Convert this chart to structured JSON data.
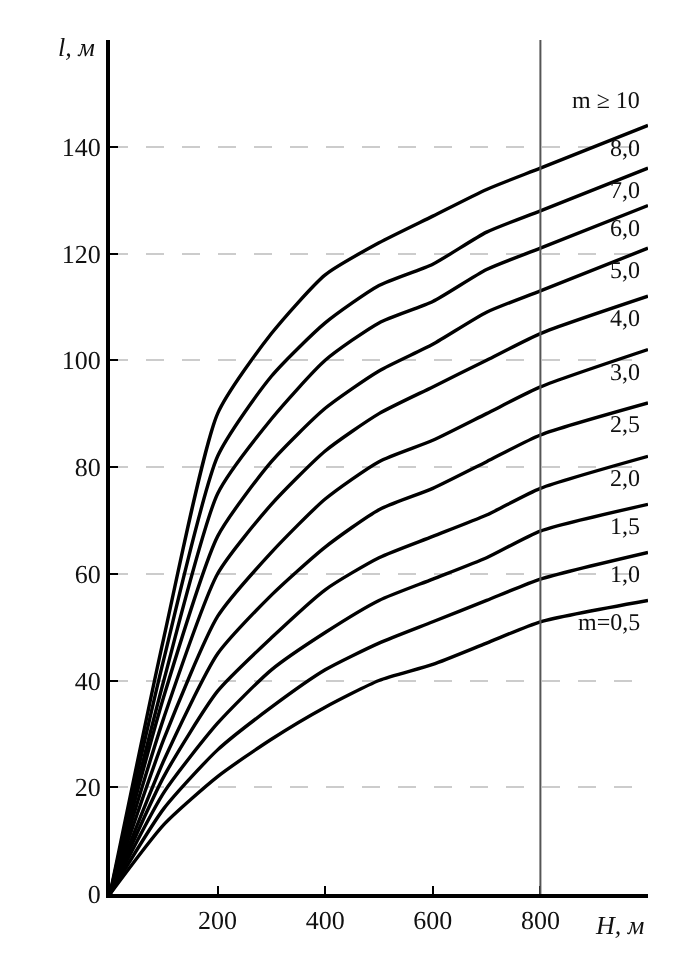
{
  "chart_data": {
    "type": "line",
    "xlabel": "H, м",
    "ylabel": "l, м",
    "x": [
      0,
      100,
      200,
      300,
      400,
      500,
      600,
      700,
      800,
      1000
    ],
    "series": [
      {
        "name": "m=0,5",
        "color": "#000000",
        "values": [
          0,
          13,
          22,
          29,
          35,
          40,
          43,
          47,
          51,
          55
        ]
      },
      {
        "name": "1,0",
        "color": "#000000",
        "values": [
          0,
          16,
          27,
          35,
          42,
          47,
          51,
          55,
          59,
          64
        ]
      },
      {
        "name": "1,5",
        "color": "#000000",
        "values": [
          0,
          19,
          32,
          42,
          49,
          55,
          59,
          63,
          68,
          73
        ]
      },
      {
        "name": "2,0",
        "color": "#000000",
        "values": [
          0,
          22,
          38,
          48,
          57,
          63,
          67,
          71,
          76,
          82
        ]
      },
      {
        "name": "2,5",
        "color": "#000000",
        "values": [
          0,
          25,
          45,
          56,
          65,
          72,
          76,
          81,
          86,
          92
        ]
      },
      {
        "name": "3,0",
        "color": "#000000",
        "values": [
          0,
          29,
          52,
          64,
          74,
          81,
          85,
          90,
          95,
          102
        ]
      },
      {
        "name": "4,0",
        "color": "#000000",
        "values": [
          0,
          33,
          60,
          73,
          83,
          90,
          95,
          100,
          105,
          112
        ]
      },
      {
        "name": "5,0",
        "color": "#000000",
        "values": [
          0,
          37,
          67,
          81,
          91,
          98,
          103,
          109,
          113,
          121
        ]
      },
      {
        "name": "6,0",
        "color": "#000000",
        "values": [
          0,
          40,
          75,
          89,
          100,
          107,
          111,
          117,
          121,
          129
        ]
      },
      {
        "name": "7,0",
        "color": "#000000",
        "values": [
          0,
          44,
          82,
          97,
          107,
          114,
          118,
          124,
          128,
          136
        ]
      },
      {
        "name": "8,0",
        "color": "#000000",
        "values": [
          0,
          48,
          90,
          105,
          116,
          122,
          127,
          132,
          136,
          144
        ]
      }
    ],
    "annotations": [
      "m ≥ 10"
    ],
    "xlim": [
      0,
      1000
    ],
    "xticks": [
      {
        "value": 200,
        "label": "200"
      },
      {
        "value": 400,
        "label": "400"
      },
      {
        "value": 600,
        "label": "600"
      },
      {
        "value": 800,
        "label": "800"
      }
    ],
    "ylim": [
      0,
      160
    ],
    "yticks": [
      0,
      20,
      40,
      60,
      80,
      100,
      120,
      140
    ],
    "ref_lines": [
      {
        "axis": "x",
        "value": 800,
        "color": "#555555"
      }
    ],
    "grid": "y",
    "legend": false,
    "marker": "none",
    "line_style": "solid"
  }
}
